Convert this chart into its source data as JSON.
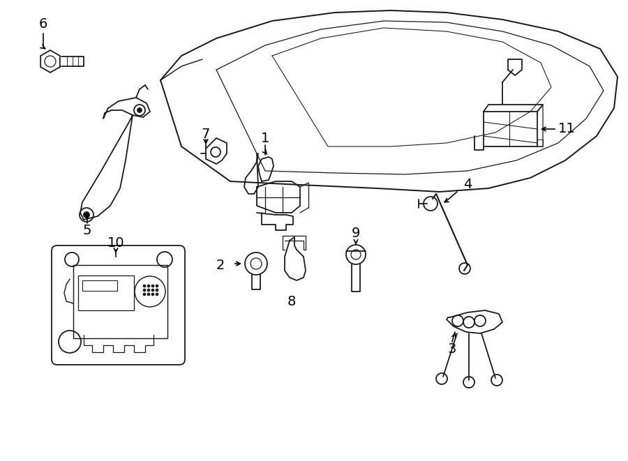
{
  "bg_color": "#ffffff",
  "line_color": "#1a1a1a",
  "lw": 1.3,
  "fig_width": 9.0,
  "fig_height": 6.61
}
